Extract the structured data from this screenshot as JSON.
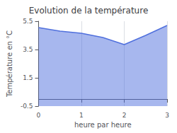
{
  "chart_data": {
    "type": "area",
    "title": "Evolution de la température",
    "xlabel": "heure par heure",
    "ylabel": "Température en °C",
    "x": [
      0,
      0.5,
      1.0,
      1.5,
      2.0,
      2.5,
      3.0
    ],
    "values": [
      5.05,
      4.8,
      4.65,
      4.35,
      3.85,
      4.5,
      5.2
    ],
    "xlim": [
      0,
      3
    ],
    "xticks": [
      0,
      1,
      2,
      3
    ],
    "ylim": [
      -0.5,
      5.5
    ],
    "yticks": [
      -0.5,
      1.5,
      3.5,
      5.5
    ],
    "grid": true
  }
}
